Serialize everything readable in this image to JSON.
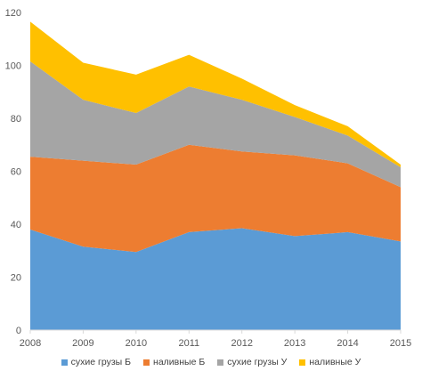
{
  "chart_data": {
    "type": "area",
    "stacked": true,
    "x": [
      "2008",
      "2009",
      "2010",
      "2011",
      "2012",
      "2013",
      "2014",
      "2015"
    ],
    "ylim": [
      0,
      120
    ],
    "yticks": [
      0,
      20,
      40,
      60,
      80,
      100,
      120
    ],
    "grid": false,
    "legend_position": "bottom",
    "series": [
      {
        "name": "сухие грузы Б",
        "color": "#5b9bd5",
        "values": [
          38,
          31.5,
          29.5,
          37,
          38.5,
          35.5,
          37,
          33.5
        ]
      },
      {
        "name": "наливные Б",
        "color": "#ed7d31",
        "values": [
          27.5,
          32.5,
          33,
          33,
          29,
          30.5,
          26,
          20.5
        ]
      },
      {
        "name": "сухие грузы У",
        "color": "#a5a5a5",
        "values": [
          36,
          23,
          19.5,
          22,
          19.5,
          14.5,
          10.5,
          7.5
        ]
      },
      {
        "name": "наливные У",
        "color": "#ffc000",
        "values": [
          15,
          14,
          14.5,
          12,
          8,
          4.5,
          3.5,
          1
        ]
      }
    ]
  }
}
